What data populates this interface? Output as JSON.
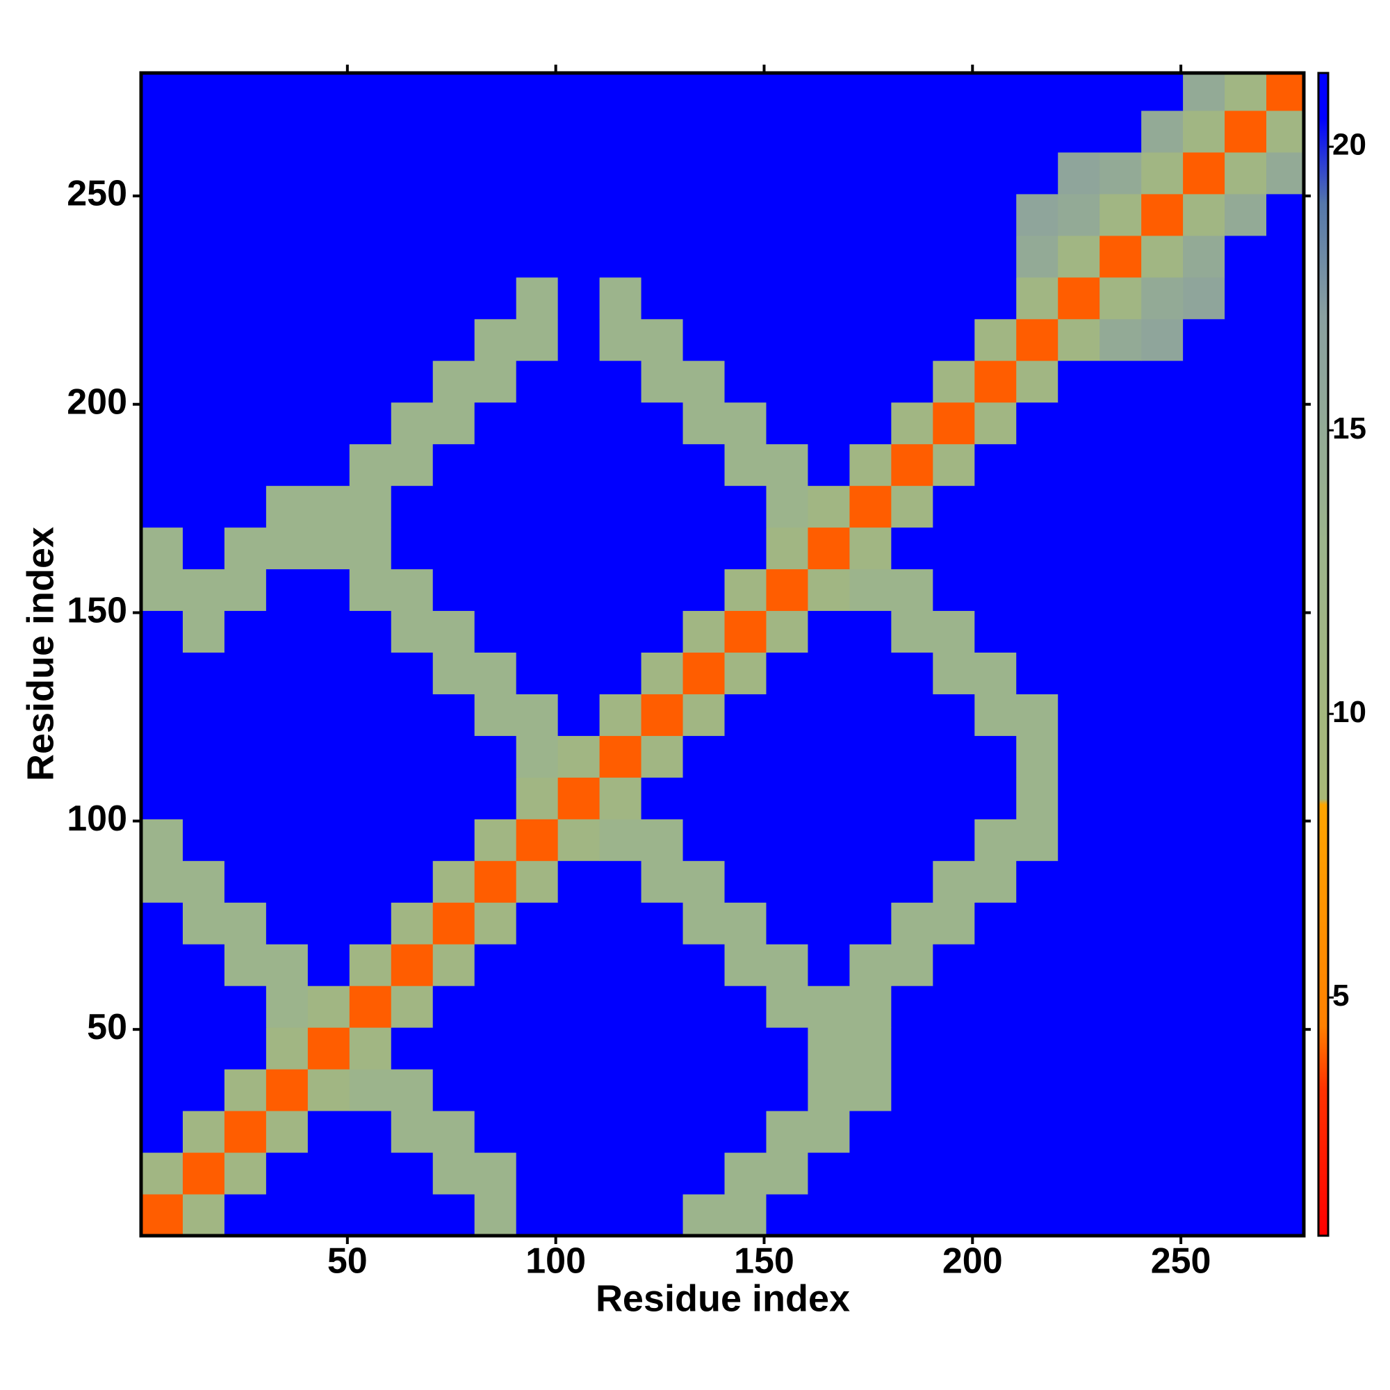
{
  "chart_data": {
    "type": "heatmap",
    "x_label": "Residue index",
    "y_label": "Residue index",
    "xlim": [
      0.5,
      279.5
    ],
    "ylim": [
      0.5,
      279.5
    ],
    "xticks": [
      50,
      100,
      150,
      200,
      250
    ],
    "yticks": [
      50,
      100,
      150,
      200,
      250
    ],
    "x": [
      5.5,
      15.5,
      25.5,
      35.5,
      45.5,
      55.5,
      65.5,
      75.5,
      85.5,
      95.5,
      105.5,
      115.5,
      125.5,
      135.5,
      145.5,
      155.5,
      165.5,
      175.5,
      185.5,
      195.5,
      205.5,
      215.5,
      225.5,
      235.5,
      245.5,
      255.5,
      265.5,
      275.5
    ],
    "y": [
      5.5,
      15.5,
      25.5,
      35.5,
      45.5,
      55.5,
      65.5,
      75.5,
      85.5,
      95.5,
      105.5,
      115.5,
      125.5,
      135.5,
      145.5,
      155.5,
      165.5,
      175.5,
      185.5,
      195.5,
      205.5,
      215.5,
      225.5,
      235.5,
      245.5,
      255.5,
      265.5,
      275.5
    ],
    "z": [
      [
        4,
        11,
        21,
        21,
        21,
        21,
        21,
        21,
        13,
        21,
        21,
        21,
        21,
        13,
        13,
        21,
        21,
        21,
        21,
        21,
        21,
        21,
        21,
        21,
        21,
        21,
        21,
        21
      ],
      [
        11,
        4,
        11,
        21,
        21,
        21,
        21,
        13,
        13,
        21,
        21,
        21,
        21,
        21,
        13,
        13,
        21,
        21,
        21,
        21,
        21,
        21,
        21,
        21,
        21,
        21,
        21,
        21
      ],
      [
        21,
        11,
        4,
        11,
        21,
        21,
        13,
        13,
        21,
        21,
        21,
        21,
        21,
        21,
        21,
        13,
        13,
        21,
        21,
        21,
        21,
        21,
        21,
        21,
        21,
        21,
        21,
        21
      ],
      [
        21,
        21,
        11,
        4,
        11,
        13,
        13,
        21,
        21,
        21,
        21,
        21,
        21,
        21,
        21,
        21,
        13,
        13,
        21,
        21,
        21,
        21,
        21,
        21,
        21,
        21,
        21,
        21
      ],
      [
        21,
        21,
        21,
        11,
        4,
        11,
        21,
        21,
        21,
        21,
        21,
        21,
        21,
        21,
        21,
        21,
        13,
        13,
        21,
        21,
        21,
        21,
        21,
        21,
        21,
        21,
        21,
        21
      ],
      [
        21,
        21,
        21,
        13,
        11,
        4,
        11,
        21,
        21,
        21,
        21,
        21,
        21,
        21,
        21,
        13,
        13,
        13,
        21,
        21,
        21,
        21,
        21,
        21,
        21,
        21,
        21,
        21
      ],
      [
        21,
        21,
        13,
        13,
        21,
        11,
        4,
        11,
        21,
        21,
        21,
        21,
        21,
        21,
        13,
        13,
        21,
        13,
        13,
        21,
        21,
        21,
        21,
        21,
        21,
        21,
        21,
        21
      ],
      [
        21,
        13,
        13,
        21,
        21,
        21,
        11,
        4,
        11,
        21,
        21,
        21,
        21,
        13,
        13,
        21,
        21,
        21,
        13,
        13,
        21,
        21,
        21,
        21,
        21,
        21,
        21,
        21
      ],
      [
        13,
        13,
        21,
        21,
        21,
        21,
        21,
        11,
        4,
        11,
        21,
        21,
        13,
        13,
        21,
        21,
        21,
        21,
        21,
        13,
        13,
        21,
        21,
        21,
        21,
        21,
        21,
        21
      ],
      [
        13,
        21,
        21,
        21,
        21,
        21,
        21,
        21,
        11,
        4,
        11,
        13,
        13,
        21,
        21,
        21,
        21,
        21,
        21,
        21,
        13,
        13,
        21,
        21,
        21,
        21,
        21,
        21
      ],
      [
        21,
        21,
        21,
        21,
        21,
        21,
        21,
        21,
        21,
        11,
        4,
        11,
        21,
        21,
        21,
        21,
        21,
        21,
        21,
        21,
        21,
        13,
        21,
        21,
        21,
        21,
        21,
        21
      ],
      [
        21,
        21,
        21,
        21,
        21,
        21,
        21,
        21,
        21,
        13,
        11,
        4,
        11,
        21,
        21,
        21,
        21,
        21,
        21,
        21,
        21,
        13,
        21,
        21,
        21,
        21,
        21,
        21
      ],
      [
        21,
        21,
        21,
        21,
        21,
        21,
        21,
        21,
        13,
        13,
        21,
        11,
        4,
        11,
        21,
        21,
        21,
        21,
        21,
        21,
        13,
        13,
        21,
        21,
        21,
        21,
        21,
        21
      ],
      [
        21,
        21,
        21,
        21,
        21,
        21,
        21,
        13,
        13,
        21,
        21,
        21,
        11,
        4,
        11,
        21,
        21,
        21,
        21,
        13,
        13,
        21,
        21,
        21,
        21,
        21,
        21,
        21
      ],
      [
        21,
        13,
        21,
        21,
        21,
        21,
        13,
        13,
        21,
        21,
        21,
        21,
        21,
        11,
        4,
        11,
        21,
        21,
        13,
        13,
        21,
        21,
        21,
        21,
        21,
        21,
        21,
        21
      ],
      [
        13,
        13,
        13,
        21,
        21,
        13,
        13,
        21,
        21,
        21,
        21,
        21,
        21,
        21,
        11,
        4,
        11,
        13,
        13,
        21,
        21,
        21,
        21,
        21,
        21,
        21,
        21,
        21
      ],
      [
        13,
        21,
        13,
        13,
        13,
        13,
        21,
        21,
        21,
        21,
        21,
        21,
        21,
        21,
        21,
        11,
        4,
        11,
        21,
        21,
        21,
        21,
        21,
        21,
        21,
        21,
        21,
        21
      ],
      [
        21,
        21,
        21,
        13,
        13,
        13,
        21,
        21,
        21,
        21,
        21,
        21,
        21,
        21,
        21,
        13,
        11,
        4,
        11,
        21,
        21,
        21,
        21,
        21,
        21,
        21,
        21,
        21
      ],
      [
        21,
        21,
        21,
        21,
        21,
        13,
        13,
        21,
        21,
        21,
        21,
        21,
        21,
        21,
        13,
        13,
        21,
        11,
        4,
        11,
        21,
        21,
        21,
        21,
        21,
        21,
        21,
        21
      ],
      [
        21,
        21,
        21,
        21,
        21,
        21,
        13,
        13,
        21,
        21,
        21,
        21,
        21,
        13,
        13,
        21,
        21,
        21,
        11,
        4,
        11,
        21,
        21,
        21,
        21,
        21,
        21,
        21
      ],
      [
        21,
        21,
        21,
        21,
        21,
        21,
        21,
        13,
        13,
        21,
        21,
        21,
        13,
        13,
        21,
        21,
        21,
        21,
        21,
        11,
        4,
        11,
        21,
        21,
        21,
        21,
        21,
        21
      ],
      [
        21,
        21,
        21,
        21,
        21,
        21,
        21,
        21,
        13,
        13,
        21,
        13,
        13,
        21,
        21,
        21,
        21,
        21,
        21,
        21,
        11,
        4,
        11,
        15,
        16,
        21,
        21,
        21
      ],
      [
        21,
        21,
        21,
        21,
        21,
        21,
        21,
        21,
        21,
        13,
        21,
        13,
        21,
        21,
        21,
        21,
        21,
        21,
        21,
        21,
        21,
        11,
        4,
        11,
        15,
        16,
        21,
        21
      ],
      [
        21,
        21,
        21,
        21,
        21,
        21,
        21,
        21,
        21,
        21,
        21,
        21,
        21,
        21,
        21,
        21,
        21,
        21,
        21,
        21,
        21,
        15,
        11,
        4,
        11,
        15,
        21,
        21
      ],
      [
        21,
        21,
        21,
        21,
        21,
        21,
        21,
        21,
        21,
        21,
        21,
        21,
        21,
        21,
        21,
        21,
        21,
        21,
        21,
        21,
        21,
        16,
        15,
        11,
        4,
        11,
        15,
        21
      ],
      [
        21,
        21,
        21,
        21,
        21,
        21,
        21,
        21,
        21,
        21,
        21,
        21,
        21,
        21,
        21,
        21,
        21,
        21,
        21,
        21,
        21,
        21,
        16,
        15,
        11,
        4,
        11,
        15
      ],
      [
        21,
        21,
        21,
        21,
        21,
        21,
        21,
        21,
        21,
        21,
        21,
        21,
        21,
        21,
        21,
        21,
        21,
        21,
        21,
        21,
        21,
        21,
        21,
        21,
        15,
        11,
        4,
        11
      ],
      [
        21,
        21,
        21,
        21,
        21,
        21,
        21,
        21,
        21,
        21,
        21,
        21,
        21,
        21,
        21,
        21,
        21,
        21,
        21,
        21,
        21,
        21,
        21,
        21,
        21,
        15,
        11,
        4
      ]
    ],
    "colorscale": [
      [
        0.8,
        "#ff0000"
      ],
      [
        3.4,
        "#ff3300"
      ],
      [
        4.5,
        "#ff8000"
      ],
      [
        8.4,
        "#ffa500"
      ],
      [
        8.5,
        "#a8b878"
      ],
      [
        13,
        "#9cb48c"
      ],
      [
        17,
        "#8aa0a0"
      ],
      [
        19,
        "#5577aa"
      ],
      [
        20.5,
        "#0000ff"
      ],
      [
        21.3,
        "#0000ff"
      ]
    ],
    "colorbar": {
      "lim": [
        0.8,
        21.3
      ],
      "ticks": [
        5,
        10,
        15,
        20
      ]
    }
  }
}
